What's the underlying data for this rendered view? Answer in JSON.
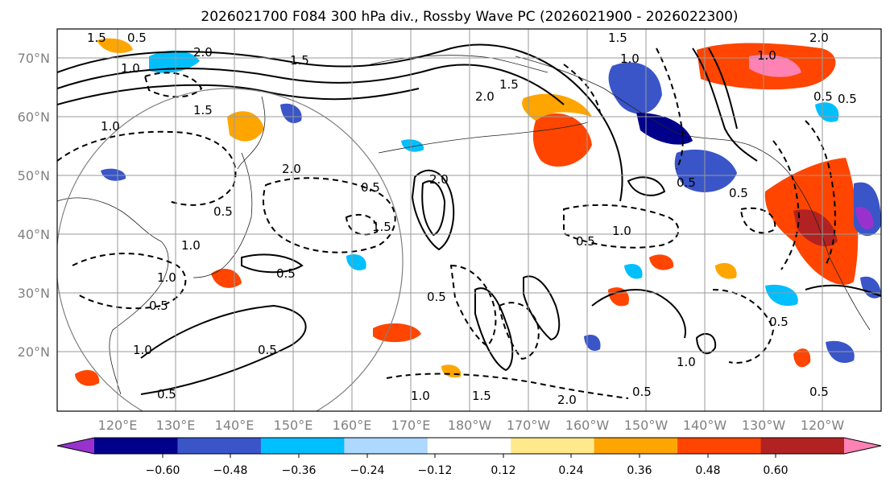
{
  "title": "2026021700 F084 300 hPa div., Rossby Wave PC (2026021900 - 2026022300)",
  "lat_labels": [
    "70°N",
    "60°N",
    "50°N",
    "40°N",
    "30°N",
    "20°N"
  ],
  "lon_labels": [
    "120°E",
    "130°E",
    "140°E",
    "150°E",
    "160°E",
    "170°E",
    "180°W",
    "170°W",
    "160°W",
    "150°W",
    "140°W",
    "130°W",
    "120°W"
  ],
  "colorbar": {
    "colors": [
      "#9932cc",
      "#00008b",
      "#3a55c8",
      "#00bfff",
      "#add8ff",
      "#ffffff",
      "#ffe98a",
      "#ffa500",
      "#ff4500",
      "#b22222",
      "#ff82b4"
    ],
    "tick_labels": [
      "−0.60",
      "−0.48",
      "−0.36",
      "−0.24",
      "−0.12",
      "0.12",
      "0.24",
      "0.36",
      "0.48",
      "0.60"
    ]
  },
  "contour_labels": [
    "1.5",
    "0.5",
    "1.0",
    "2.0",
    "1.5",
    "1.0",
    "2.0",
    "0.5",
    "1.5",
    "0.5",
    "1.0",
    "2.0",
    "1.5",
    "2.0",
    "0.5",
    "1.0",
    "0.5",
    "0.5",
    "1.0",
    "1.5",
    "0.5",
    "1.0",
    "0.5",
    "1.0",
    "0.5",
    "0.5",
    "0.5",
    "1.0",
    "0.5",
    "1.5",
    "1.0",
    "2.0",
    "0.5",
    "1.0",
    "0.5",
    "0.5",
    "0.5",
    "1.5",
    "2.0"
  ]
}
